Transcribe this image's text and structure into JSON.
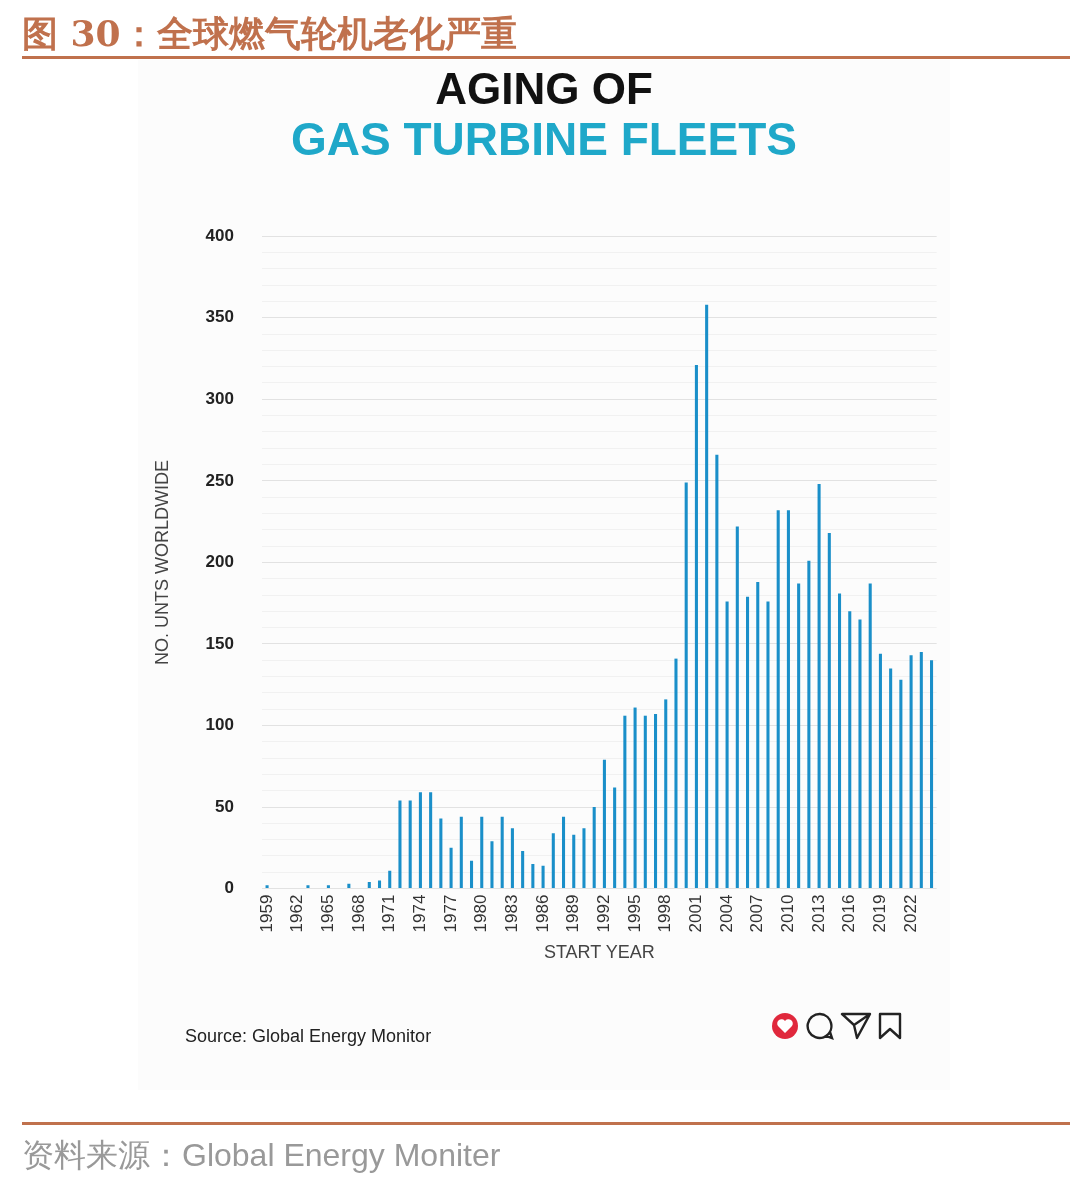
{
  "chart_data": {
    "type": "bar",
    "title": "图 30：全球燃气轮机老化严重",
    "subtitle": "AGING OF",
    "xlabel": "START YEAR",
    "ylabel": "NO. UNTS WORLDWIDE",
    "annotations": [
      "GAS TURBINE FLEETS",
      "Source: Global Energy Monitor",
      "资料来源：Global Energy Moniter"
    ],
    "categories": [
      "1959",
      null,
      null,
      "1962",
      null,
      null,
      "1965",
      null,
      null,
      "1968",
      null,
      null,
      "1971",
      null,
      null,
      "1974",
      null,
      null,
      "1977",
      null,
      null,
      "1980",
      null,
      null,
      "1983",
      null,
      null,
      "1986",
      null,
      null,
      "1989",
      null,
      null,
      "1992",
      null,
      null,
      "1995",
      null,
      null,
      "1998",
      null,
      null,
      "2001",
      null,
      null,
      "2004",
      null,
      null,
      "2007",
      null,
      null,
      "2010",
      null,
      null,
      "2013",
      null,
      null,
      "2016",
      null,
      null,
      "2019",
      null,
      null,
      "2022",
      null,
      null
    ],
    "values": [
      2,
      0,
      0,
      0,
      2,
      0,
      2,
      0,
      3,
      0,
      4,
      5,
      11,
      54,
      54,
      59,
      59,
      43,
      25,
      44,
      17,
      44,
      29,
      44,
      37,
      23,
      15,
      14,
      34,
      44,
      33,
      37,
      50,
      79,
      62,
      106,
      111,
      106,
      107,
      116,
      141,
      249,
      321,
      358,
      266,
      176,
      222,
      179,
      188,
      176,
      232,
      232,
      187,
      201,
      248,
      218,
      181,
      170,
      165,
      187,
      144,
      135,
      128,
      143,
      145,
      140
    ],
    "color": "#1a8fc9",
    "ylim": [
      0,
      400
    ],
    "yticks": [
      0,
      {
        "value": 10,
        "label": null
      },
      {
        "value": 20,
        "label": null
      },
      {
        "value": 30,
        "label": null
      },
      {
        "value": 40,
        "label": null
      },
      50,
      {
        "value": 60,
        "label": null
      },
      {
        "value": 70,
        "label": null
      },
      {
        "value": 80,
        "label": null
      },
      {
        "value": 90,
        "label": null
      },
      100,
      {
        "value": 110,
        "label": null
      },
      {
        "value": 120,
        "label": null
      },
      {
        "value": 130,
        "label": null
      },
      {
        "value": 140,
        "label": null
      },
      150,
      {
        "value": 160,
        "label": null
      },
      {
        "value": 170,
        "label": null
      },
      {
        "value": 180,
        "label": null
      },
      {
        "value": 190,
        "label": null
      },
      200,
      {
        "value": 210,
        "label": null
      },
      {
        "value": 220,
        "label": null
      },
      {
        "value": 230,
        "label": null
      },
      {
        "value": 240,
        "label": null
      },
      250,
      {
        "value": 260,
        "label": null
      },
      {
        "value": 270,
        "label": null
      },
      {
        "value": 280,
        "label": null
      },
      {
        "value": 290,
        "label": null
      },
      300,
      {
        "value": 310,
        "label": null
      },
      {
        "value": 320,
        "label": null
      },
      {
        "value": 330,
        "label": null
      },
      {
        "value": 340,
        "label": null
      },
      350,
      {
        "value": 360,
        "label": null
      },
      {
        "value": 370,
        "label": null
      },
      {
        "value": 380,
        "label": null
      },
      {
        "value": 390,
        "label": null
      },
      400
    ],
    "grid": "y"
  }
}
